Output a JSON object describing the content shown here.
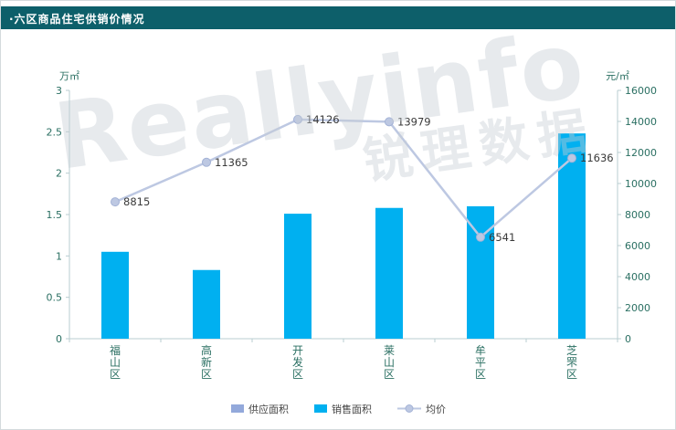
{
  "header": {
    "title": "·六区商品住宅供销价情况"
  },
  "colors": {
    "header_bg": "#0d5f6a",
    "bar": "#00b0f0",
    "supply": "#93a9db",
    "line": "#bdc8e2",
    "line_marker_stroke": "#a3b2d6",
    "axis_line": "#b9cdd1",
    "axis_text": "#2a6f62",
    "value_label": "#3a3a3a",
    "legend_text": "#444444"
  },
  "watermark": {
    "line1": "Reallyinfo",
    "line2": "锐理数据"
  },
  "chart_data": {
    "type": "bar",
    "title": "六区商品住宅供销价情况",
    "categories": [
      "福山区",
      "高新区",
      "开发区",
      "莱山区",
      "牟平区",
      "芝罘区"
    ],
    "series": [
      {
        "name": "销售面积",
        "type": "bar",
        "axis": "left",
        "values": [
          1.05,
          0.83,
          1.51,
          1.58,
          1.6,
          2.48
        ]
      },
      {
        "name": "均价",
        "type": "line",
        "axis": "right",
        "values": [
          8815,
          11365,
          14126,
          13979,
          6541,
          11636
        ],
        "labels": [
          "8815",
          "11365",
          "14126",
          "13979",
          "6541",
          "11636"
        ]
      }
    ],
    "left_axis": {
      "label": "万㎡",
      "min": 0,
      "max": 3,
      "step": 0.5
    },
    "right_axis": {
      "label": "元/㎡",
      "min": 0,
      "max": 16000,
      "step": 2000
    },
    "legend": [
      {
        "label": "供应面积",
        "swatch": "rect",
        "color_key": "supply"
      },
      {
        "label": "销售面积",
        "swatch": "rect",
        "color_key": "bar"
      },
      {
        "label": "均价",
        "swatch": "line",
        "color_key": "line"
      }
    ],
    "legend_position": "bottom",
    "grid": false
  }
}
